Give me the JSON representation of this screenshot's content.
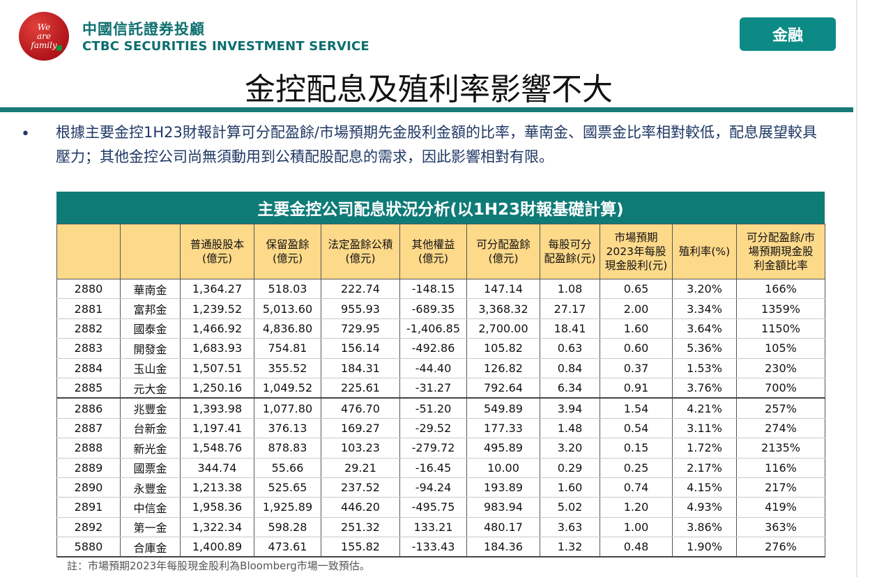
{
  "header": {
    "logo_text": [
      "We",
      "are",
      "family"
    ],
    "brand_cn": "中國信託證券投顧",
    "brand_en": "CTBC SECURITIES INVESTMENT SERVICE",
    "tag": "金融"
  },
  "title": "金控配息及殖利率影響不大",
  "bullet": "•",
  "paragraph": "根據主要金控1H23財報計算可分配盈餘/市場預期先金股利金額的比率，華南金、國票金比率相對較低，配息展望較具壓力；其他金控公司尚無須動用到公積配股配息的需求，因此影響相對有限。",
  "table": {
    "title": "主要金控公司配息狀況分析(以1H23財報基礎計算)",
    "headers": [
      "",
      "",
      "普通股股本\n(億元)",
      "保留盈餘\n(億元)",
      "法定盈餘公積\n(億元)",
      "其他權益\n(億元)",
      "可分配盈餘\n(億元)",
      "每股可分\n配盈餘(元)",
      "市場預期\n2023年每股\n現金股利(元)",
      "殖利率(%)",
      "可分配盈餘/市\n場預期現金股\n利金額比率"
    ],
    "rows": [
      [
        "2880",
        "華南金",
        "1,364.27",
        "518.03",
        "222.74",
        "-148.15",
        "147.14",
        "1.08",
        "0.65",
        "3.20%",
        "166%"
      ],
      [
        "2881",
        "富邦金",
        "1,239.52",
        "5,013.60",
        "955.93",
        "-689.35",
        "3,368.32",
        "27.17",
        "2.00",
        "3.34%",
        "1359%"
      ],
      [
        "2882",
        "國泰金",
        "1,466.92",
        "4,836.80",
        "729.95",
        "-1,406.85",
        "2,700.00",
        "18.41",
        "1.60",
        "3.64%",
        "1150%"
      ],
      [
        "2883",
        "開發金",
        "1,683.93",
        "754.81",
        "156.14",
        "-492.86",
        "105.82",
        "0.63",
        "0.60",
        "5.36%",
        "105%"
      ],
      [
        "2884",
        "玉山金",
        "1,507.51",
        "355.52",
        "184.31",
        "-44.40",
        "126.82",
        "0.84",
        "0.37",
        "1.53%",
        "230%"
      ],
      [
        "2885",
        "元大金",
        "1,250.16",
        "1,049.52",
        "225.61",
        "-31.27",
        "792.64",
        "6.34",
        "0.91",
        "3.76%",
        "700%"
      ],
      [
        "2886",
        "兆豐金",
        "1,393.98",
        "1,077.80",
        "476.70",
        "-51.20",
        "549.89",
        "3.94",
        "1.54",
        "4.21%",
        "257%"
      ],
      [
        "2887",
        "台新金",
        "1,197.41",
        "376.13",
        "169.27",
        "-29.52",
        "177.33",
        "1.48",
        "0.54",
        "3.11%",
        "274%"
      ],
      [
        "2888",
        "新光金",
        "1,548.76",
        "878.83",
        "103.23",
        "-279.72",
        "495.89",
        "3.20",
        "0.15",
        "1.72%",
        "2135%"
      ],
      [
        "2889",
        "國票金",
        "344.74",
        "55.66",
        "29.21",
        "-16.45",
        "10.00",
        "0.29",
        "0.25",
        "2.17%",
        "116%"
      ],
      [
        "2890",
        "永豐金",
        "1,213.38",
        "525.65",
        "237.52",
        "-94.24",
        "193.89",
        "1.60",
        "0.74",
        "4.15%",
        "217%"
      ],
      [
        "2891",
        "中信金",
        "1,958.36",
        "1,925.89",
        "446.20",
        "-495.75",
        "983.94",
        "5.02",
        "1.20",
        "4.93%",
        "419%"
      ],
      [
        "2892",
        "第一金",
        "1,322.34",
        "598.28",
        "251.32",
        "133.21",
        "480.17",
        "3.63",
        "1.00",
        "3.86%",
        "363%"
      ],
      [
        "5880",
        "合庫金",
        "1,400.89",
        "473.61",
        "155.82",
        "-133.43",
        "184.36",
        "1.32",
        "0.48",
        "1.90%",
        "276%"
      ]
    ]
  },
  "note": "註：市場預期2023年每股現金股利為Bloomberg市場一致預估。"
}
